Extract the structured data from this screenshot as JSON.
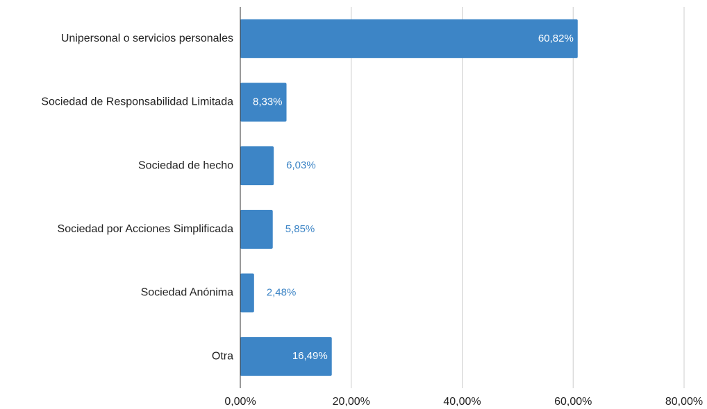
{
  "chart_data": {
    "type": "bar",
    "orientation": "horizontal",
    "categories": [
      "Unipersonal o servicios personales",
      "Sociedad de Responsabilidad Limitada",
      "Sociedad de hecho",
      "Sociedad por Acciones Simplificada",
      "Sociedad Anónima",
      "Otra"
    ],
    "values": [
      60.82,
      8.33,
      6.03,
      5.85,
      2.48,
      16.49
    ],
    "value_labels": [
      "60,82%",
      "8,33%",
      "6,03%",
      "5,85%",
      "2,48%",
      "16,49%"
    ],
    "color": "#3d85c6",
    "xlim": [
      0,
      80
    ],
    "xticks": [
      {
        "value": 0,
        "label": "0,00%"
      },
      {
        "value": 20,
        "label": "20,00%"
      },
      {
        "value": 40,
        "label": "40,00%"
      },
      {
        "value": 60,
        "label": "60,00%"
      },
      {
        "value": 80,
        "label": "80,00%"
      }
    ],
    "grid": true
  }
}
